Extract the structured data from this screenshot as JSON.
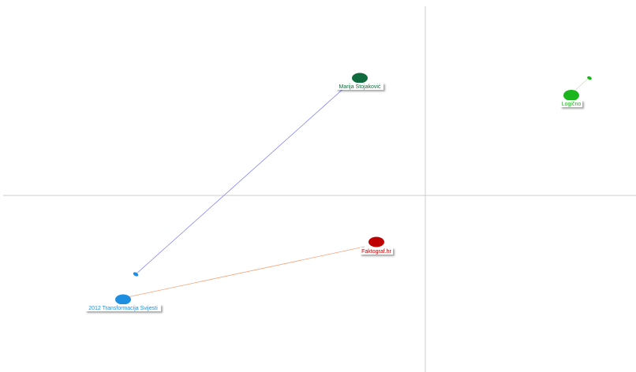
{
  "nodes": [
    {
      "id": "marija",
      "label": "Marija Stojaković",
      "color": "#0f6b3d"
    },
    {
      "id": "logicno",
      "label": "Logično",
      "color": "#1db51d"
    },
    {
      "id": "faktograf",
      "label": "Faktograf.hr",
      "color": "#c00000"
    },
    {
      "id": "transformacija",
      "label": "2012 Transformacija Svijesti",
      "color": "#1e8fe0"
    }
  ],
  "edges": [
    {
      "from": "transformacija",
      "to": "marija",
      "color": "#8080ff"
    },
    {
      "from": "transformacija",
      "to": "faktograf",
      "color": "#f4a37a"
    },
    {
      "from": "logicno",
      "to": "logicno",
      "color": "#c8e0c0"
    }
  ]
}
